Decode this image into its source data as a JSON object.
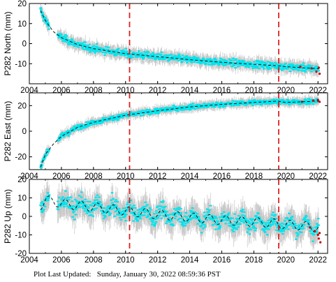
{
  "chart_data": [
    {
      "type": "scatter",
      "ylabel": "P282 North (mm)",
      "xlim": [
        2004,
        2022.6
      ],
      "ylim": [
        -20,
        20
      ],
      "xticks": [
        2004,
        2006,
        2008,
        2010,
        2012,
        2014,
        2016,
        2018,
        2020,
        2022
      ],
      "yticks": [
        -10,
        0,
        10,
        20
      ],
      "vlines": [
        2010.25,
        2019.55
      ],
      "gaps": [
        [
          2005.25,
          2005.75
        ]
      ],
      "trend": {
        "x": [
          2004.7,
          2005.0,
          2005.5,
          2006.0,
          2007.0,
          2008.0,
          2010.0,
          2012.0,
          2014.0,
          2016.0,
          2018.0,
          2019.5,
          2020.0,
          2021.0,
          2022.0
        ],
        "y": [
          16.5,
          11.5,
          6.0,
          3.0,
          -0.5,
          -2.5,
          -5.0,
          -6.5,
          -8.0,
          -9.3,
          -10.3,
          -11.0,
          -11.5,
          -12.0,
          -12.5
        ]
      },
      "scatter_noise": 1.3,
      "error_bar": 2.8,
      "red_points": {
        "x": [
          2020.9,
          2021.6,
          2021.9,
          2022.05,
          2022.1
        ],
        "y": [
          -11.5,
          -12.3,
          -14.0,
          -12.0,
          -15.0
        ]
      }
    },
    {
      "type": "scatter",
      "ylabel": "P282 East (mm)",
      "xlim": [
        2004,
        2022.6
      ],
      "ylim": [
        -30,
        30
      ],
      "xticks": [
        2004,
        2006,
        2008,
        2010,
        2012,
        2014,
        2016,
        2018,
        2020,
        2022
      ],
      "yticks": [
        -20,
        0,
        20
      ],
      "vlines": [
        2010.25,
        2019.55
      ],
      "gaps": [
        [
          2005.25,
          2005.75
        ]
      ],
      "trend": {
        "x": [
          2004.7,
          2005.0,
          2005.5,
          2006.0,
          2007.0,
          2008.0,
          2010.0,
          2012.0,
          2014.0,
          2016.0,
          2018.0,
          2019.5,
          2020.0,
          2021.0,
          2022.0
        ],
        "y": [
          -28.0,
          -18.0,
          -10.0,
          -4.0,
          3.0,
          7.0,
          12.5,
          16.0,
          19.0,
          21.0,
          22.5,
          23.5,
          22.5,
          23.0,
          23.5
        ]
      },
      "scatter_noise": 1.4,
      "error_bar": 3.2,
      "red_points": {
        "x": [
          2021.0,
          2021.7,
          2022.0,
          2022.1
        ],
        "y": [
          23.0,
          24.0,
          24.5,
          23.0
        ]
      }
    },
    {
      "type": "scatter",
      "ylabel": "P282 Up (mm)",
      "xlim": [
        2004,
        2022.6
      ],
      "ylim": [
        -20,
        20
      ],
      "xticks": [
        2004,
        2006,
        2008,
        2010,
        2012,
        2014,
        2016,
        2018,
        2020,
        2022
      ],
      "yticks": [
        -20,
        -10,
        0,
        10,
        20
      ],
      "vlines": [
        2010.25,
        2019.55
      ],
      "gaps": [
        [
          2005.25,
          2005.75
        ]
      ],
      "trend": {
        "x": [
          2004.7,
          2005.0,
          2006.0,
          2008.0,
          2010.0,
          2012.0,
          2014.0,
          2016.0,
          2018.0,
          2019.5,
          2020.0,
          2021.0,
          2022.0
        ],
        "y": [
          6.0,
          9.0,
          7.0,
          5.0,
          3.0,
          1.0,
          -0.5,
          -2.0,
          -3.0,
          -4.0,
          -4.5,
          -5.0,
          -6.0
        ]
      },
      "seasonal_amplitude": 2.5,
      "scatter_noise": 3.0,
      "error_bar": 6.5,
      "red_points": {
        "x": [
          2021.5,
          2021.8,
          2022.0,
          2022.05,
          2022.1,
          2022.15
        ],
        "y": [
          -6.0,
          -8.0,
          -10.0,
          -12.0,
          -9.0,
          -14.0
        ]
      }
    }
  ],
  "colors": {
    "scatter": "#00e5ee",
    "error": "#bdbdbd",
    "trend": "#000000",
    "vline": "#dd2222",
    "recent": "#cc0000"
  },
  "footer": {
    "label": "Plot Last Updated:",
    "timestamp": "Sunday, January 30, 2022 08:59:36 PST"
  }
}
